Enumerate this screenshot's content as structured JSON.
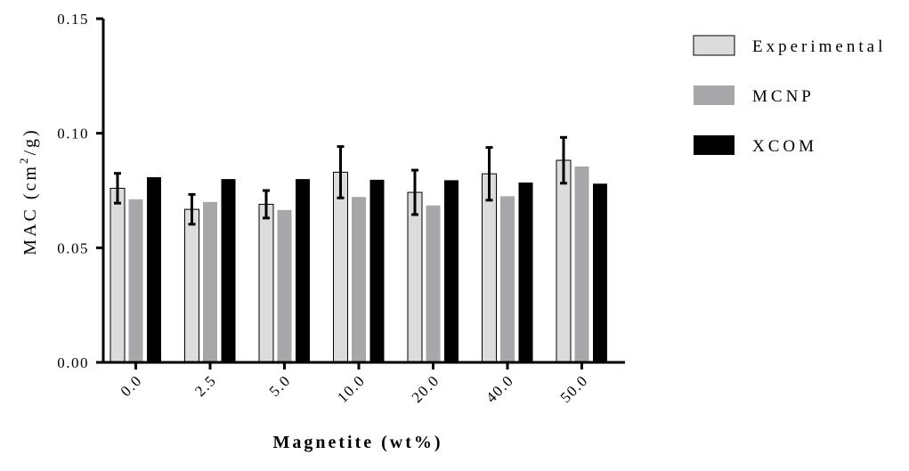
{
  "chart_data": {
    "type": "bar",
    "title": "",
    "xlabel": "Magnetite (wt%)",
    "ylabel_main": "MAC (cm",
    "ylabel_sup": "2",
    "ylabel_tail": "/g)",
    "categories": [
      "0.0",
      "2.5",
      "5.0",
      "10.0",
      "20.0",
      "40.0",
      "50.0"
    ],
    "ylim": [
      0,
      0.15
    ],
    "yticks": [
      "0.00",
      "0.05",
      "0.10",
      "0.15"
    ],
    "ytick_values": [
      0,
      0.05,
      0.1,
      0.15
    ],
    "series": [
      {
        "name": "Experimental",
        "color": "#dcdcdc",
        "stroke": "#000000",
        "values": [
          0.076,
          0.0668,
          0.069,
          0.083,
          0.0742,
          0.0823,
          0.0882
        ],
        "errors": [
          0.0065,
          0.0065,
          0.006,
          0.0112,
          0.0097,
          0.0115,
          0.01
        ]
      },
      {
        "name": "MCNP",
        "color": "#a7a7aa",
        "values": [
          0.0712,
          0.07,
          0.0665,
          0.0722,
          0.0685,
          0.0725,
          0.0855
        ]
      },
      {
        "name": "XCOM",
        "color": "#000000",
        "values": [
          0.0808,
          0.08,
          0.08,
          0.0797,
          0.0795,
          0.0785,
          0.078
        ]
      }
    ],
    "legend_position": "top-right",
    "grid": false
  }
}
